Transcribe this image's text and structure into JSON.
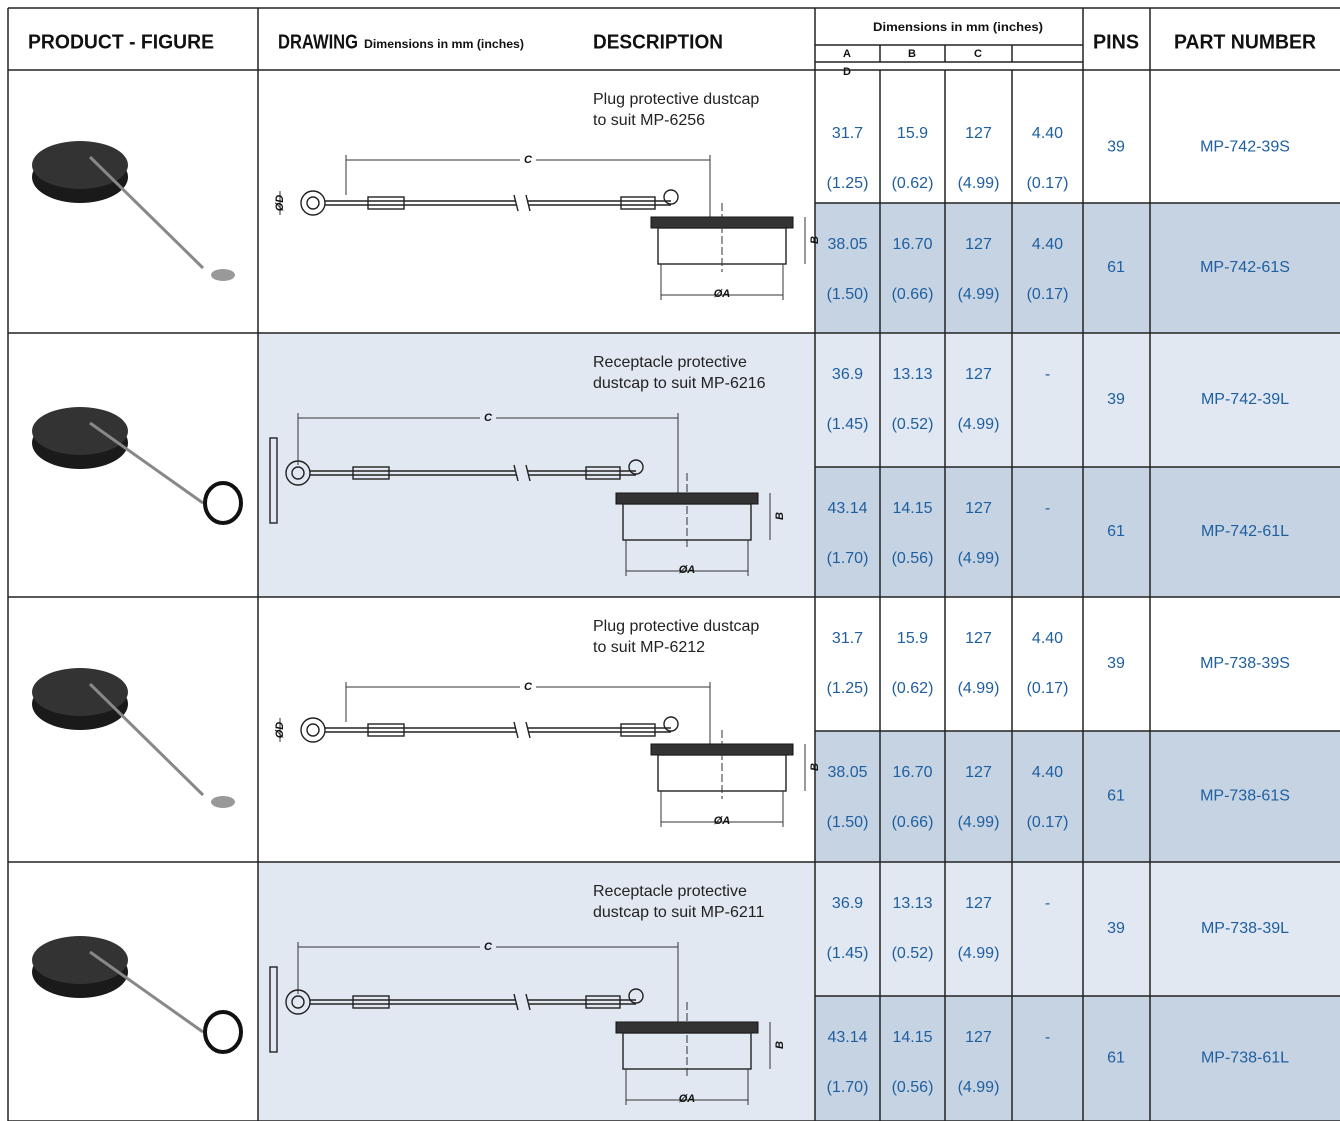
{
  "header": {
    "product_figure": "PRODUCT - FIGURE",
    "drawing": "DRAWING",
    "drawing_note": "Dimensions in mm (inches)",
    "description": "DESCRIPTION",
    "dimensions": "Dimensions in mm (inches)",
    "dim_labels": [
      "A",
      "B",
      "C",
      "D"
    ],
    "pins": "PINS",
    "part_number": "PART NUMBER"
  },
  "groups": [
    {
      "description": [
        "Plug protective dustcap",
        "to suit MP-6256"
      ],
      "drawing_labels": {
        "c": "C",
        "d": "ØD",
        "b": "B",
        "a": "ØA"
      },
      "rows": [
        {
          "a": [
            "31.7",
            "(1.25)"
          ],
          "b": [
            "15.9",
            "(0.62)"
          ],
          "c": [
            "127",
            "(4.99)"
          ],
          "d": [
            "4.40",
            "(0.17)"
          ],
          "pins": "39",
          "part_number": "MP-742-39S"
        },
        {
          "a": [
            "38.05",
            "(1.50)"
          ],
          "b": [
            "16.70",
            "(0.66)"
          ],
          "c": [
            "127",
            "(4.99)"
          ],
          "d": [
            "4.40",
            "(0.17)"
          ],
          "pins": "61",
          "part_number": "MP-742-61S"
        }
      ]
    },
    {
      "description": [
        "Receptacle protective",
        "dustcap to suit MP-6216"
      ],
      "drawing_labels": {
        "c": "C",
        "b": "B",
        "a": "ØA"
      },
      "rows": [
        {
          "a": [
            "36.9",
            "(1.45)"
          ],
          "b": [
            "13.13",
            "(0.52)"
          ],
          "c": [
            "127",
            "(4.99)"
          ],
          "d": [
            "-"
          ],
          "pins": "39",
          "part_number": "MP-742-39L"
        },
        {
          "a": [
            "43.14",
            "(1.70)"
          ],
          "b": [
            "14.15",
            "(0.56)"
          ],
          "c": [
            "127",
            "(4.99)"
          ],
          "d": [
            "-"
          ],
          "pins": "61",
          "part_number": "MP-742-61L"
        }
      ]
    },
    {
      "description": [
        "Plug protective dustcap",
        "to suit MP-6212"
      ],
      "drawing_labels": {
        "c": "C",
        "d": "ØD",
        "b": "B",
        "a": "ØA"
      },
      "rows": [
        {
          "a": [
            "31.7",
            "(1.25)"
          ],
          "b": [
            "15.9",
            "(0.62)"
          ],
          "c": [
            "127",
            "(4.99)"
          ],
          "d": [
            "4.40",
            "(0.17)"
          ],
          "pins": "39",
          "part_number": "MP-738-39S"
        },
        {
          "a": [
            "38.05",
            "(1.50)"
          ],
          "b": [
            "16.70",
            "(0.66)"
          ],
          "c": [
            "127",
            "(4.99)"
          ],
          "d": [
            "4.40",
            "(0.17)"
          ],
          "pins": "61",
          "part_number": "MP-738-61S"
        }
      ]
    },
    {
      "description": [
        "Receptacle protective",
        "dustcap to suit MP-6211"
      ],
      "drawing_labels": {
        "c": "C",
        "b": "B",
        "a": "ØA"
      },
      "rows": [
        {
          "a": [
            "36.9",
            "(1.45)"
          ],
          "b": [
            "13.13",
            "(0.52)"
          ],
          "c": [
            "127",
            "(4.99)"
          ],
          "d": [
            "-"
          ],
          "pins": "39",
          "part_number": "MP-738-39L"
        },
        {
          "a": [
            "43.14",
            "(1.70)"
          ],
          "b": [
            "14.15",
            "(0.56)"
          ],
          "c": [
            "127",
            "(4.99)"
          ],
          "d": [
            "-"
          ],
          "pins": "61",
          "part_number": "MP-738-61L"
        }
      ]
    }
  ]
}
